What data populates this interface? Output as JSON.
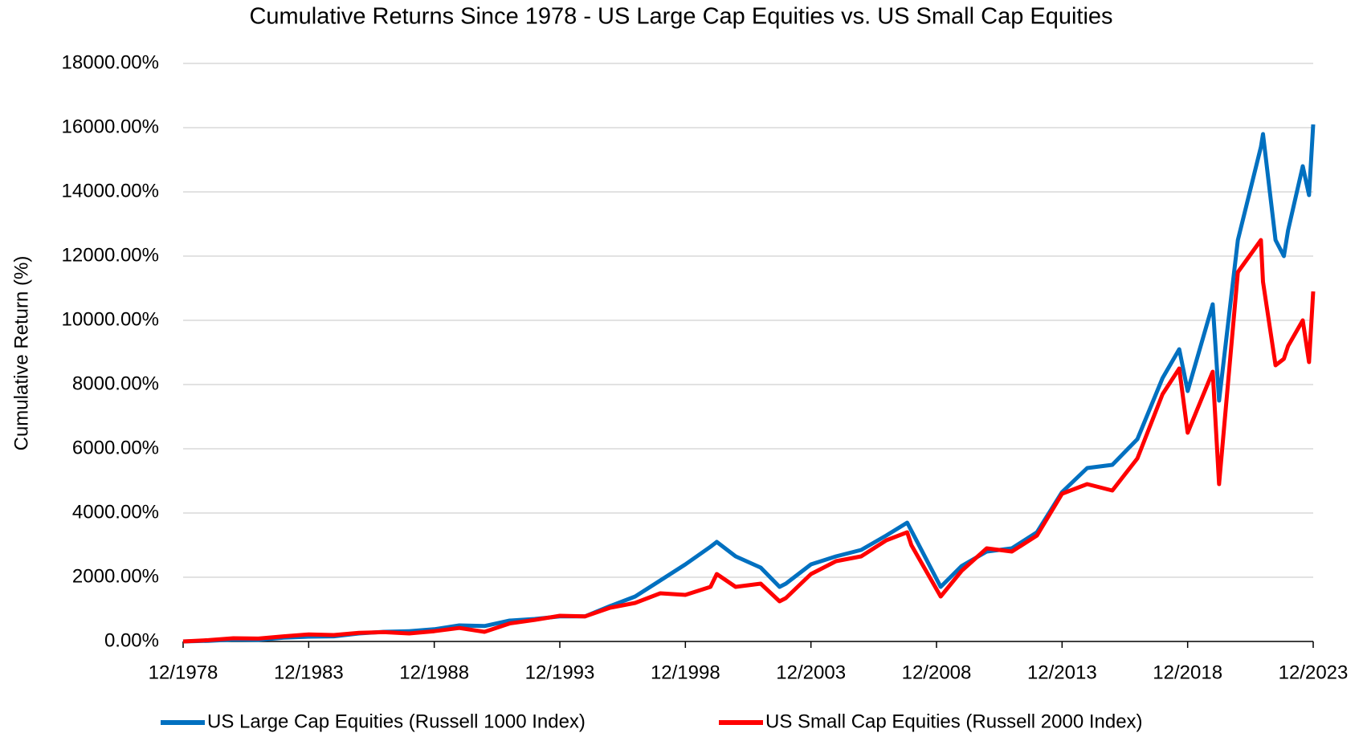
{
  "chart_data": {
    "type": "line",
    "title": "Cumulative Returns Since 1978 - US Large Cap Equities vs. US Small Cap Equities",
    "y_label": "Cumulative Return (%)",
    "x": [
      "12/1978",
      "12/1979",
      "12/1980",
      "12/1981",
      "12/1982",
      "12/1983",
      "12/1984",
      "12/1985",
      "12/1986",
      "12/1987",
      "12/1988",
      "12/1989",
      "12/1990",
      "12/1991",
      "12/1992",
      "12/1993",
      "12/1994",
      "12/1995",
      "12/1996",
      "12/1997",
      "12/1998",
      "12/1999",
      "03/2000",
      "12/2000",
      "12/2001",
      "09/2002",
      "12/2002",
      "12/2003",
      "12/2004",
      "12/2005",
      "12/2006",
      "10/2007",
      "12/2007",
      "02/2009",
      "12/2009",
      "12/2010",
      "12/2011",
      "12/2012",
      "12/2013",
      "12/2014",
      "12/2015",
      "12/2016",
      "12/2017",
      "08/2018",
      "12/2018",
      "12/2019",
      "03/2020",
      "12/2020",
      "11/2021",
      "12/2021",
      "06/2022",
      "10/2022",
      "12/2022",
      "07/2023",
      "10/2023",
      "12/2023"
    ],
    "series": [
      {
        "name": "US Large Cap Equities (Russell 1000 Index)",
        "color": "#0070c0",
        "values": [
          0,
          20,
          60,
          50,
          120,
          150,
          160,
          250,
          300,
          320,
          380,
          500,
          480,
          650,
          700,
          780,
          780,
          1100,
          1400,
          1900,
          2400,
          2950,
          3100,
          2650,
          2300,
          1700,
          1800,
          2400,
          2650,
          2850,
          3300,
          3700,
          3450,
          1700,
          2350,
          2800,
          2900,
          3400,
          4650,
          5400,
          5500,
          6300,
          8200,
          9100,
          7800,
          10500,
          7500,
          12500,
          15400,
          15800,
          12500,
          12000,
          12800,
          14800,
          13900,
          16100
        ]
      },
      {
        "name": "US Small Cap Equities (Russell 2000 Index)",
        "color": "#ff0000",
        "values": [
          0,
          40,
          100,
          90,
          160,
          220,
          200,
          270,
          290,
          250,
          320,
          420,
          300,
          560,
          670,
          800,
          780,
          1050,
          1200,
          1500,
          1450,
          1700,
          2100,
          1700,
          1800,
          1250,
          1350,
          2100,
          2500,
          2650,
          3150,
          3400,
          3000,
          1400,
          2200,
          2900,
          2800,
          3300,
          4600,
          4900,
          4700,
          5700,
          7700,
          8500,
          6500,
          8400,
          4900,
          11500,
          12500,
          11200,
          8600,
          8800,
          9200,
          10000,
          8700,
          10900
        ]
      }
    ],
    "xlim": [
      "12/1978",
      "12/2023"
    ],
    "xticks": [
      "12/1978",
      "12/1983",
      "12/1988",
      "12/1993",
      "12/1998",
      "12/2003",
      "12/2008",
      "12/2013",
      "12/2018",
      "12/2023"
    ],
    "ylim": [
      0,
      18000
    ],
    "yticks": [
      {
        "value": 0,
        "label": "0.00%"
      },
      {
        "value": 2000,
        "label": "2000.00%"
      },
      {
        "value": 4000,
        "label": "4000.00%"
      },
      {
        "value": 6000,
        "label": "6000.00%"
      },
      {
        "value": 8000,
        "label": "8000.00%"
      },
      {
        "value": 10000,
        "label": "10000.00%"
      },
      {
        "value": 12000,
        "label": "12000.00%"
      },
      {
        "value": 14000,
        "label": "14000.00%"
      },
      {
        "value": 16000,
        "label": "16000.00%"
      },
      {
        "value": 18000,
        "label": "18000.00%"
      }
    ],
    "grid": true,
    "legend": "bottom"
  }
}
